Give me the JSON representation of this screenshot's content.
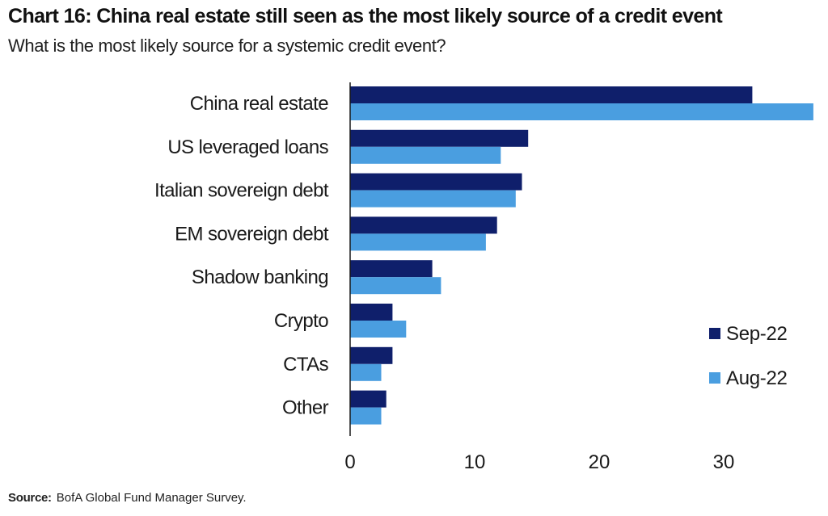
{
  "title": "Chart 16: China real estate still seen as the most likely source of a credit event",
  "subtitle": "What is the most likely source for a systemic credit event?",
  "source": {
    "label": "Source:",
    "text": "BofA Global Fund Manager Survey."
  },
  "colors": {
    "sep22": "#0f1f6b",
    "aug22": "#4a9ee0"
  },
  "chart_data": {
    "type": "bar",
    "orientation": "horizontal",
    "categories": [
      "China real estate",
      "US leveraged loans",
      "Italian sovereign debt",
      "EM sovereign debt",
      "Shadow banking",
      "Crypto",
      "CTAs",
      "Other"
    ],
    "series": [
      {
        "name": "Sep-22",
        "values": [
          32.3,
          14.3,
          13.8,
          11.8,
          6.6,
          3.4,
          3.4,
          2.9
        ]
      },
      {
        "name": "Aug-22",
        "values": [
          37.2,
          12.1,
          13.3,
          10.9,
          7.3,
          4.5,
          2.5,
          2.5
        ]
      }
    ],
    "x_ticks": [
      "0",
      "10",
      "20",
      "30"
    ],
    "xlim": [
      0,
      37.2
    ],
    "grid": false,
    "legend_position": "right"
  }
}
